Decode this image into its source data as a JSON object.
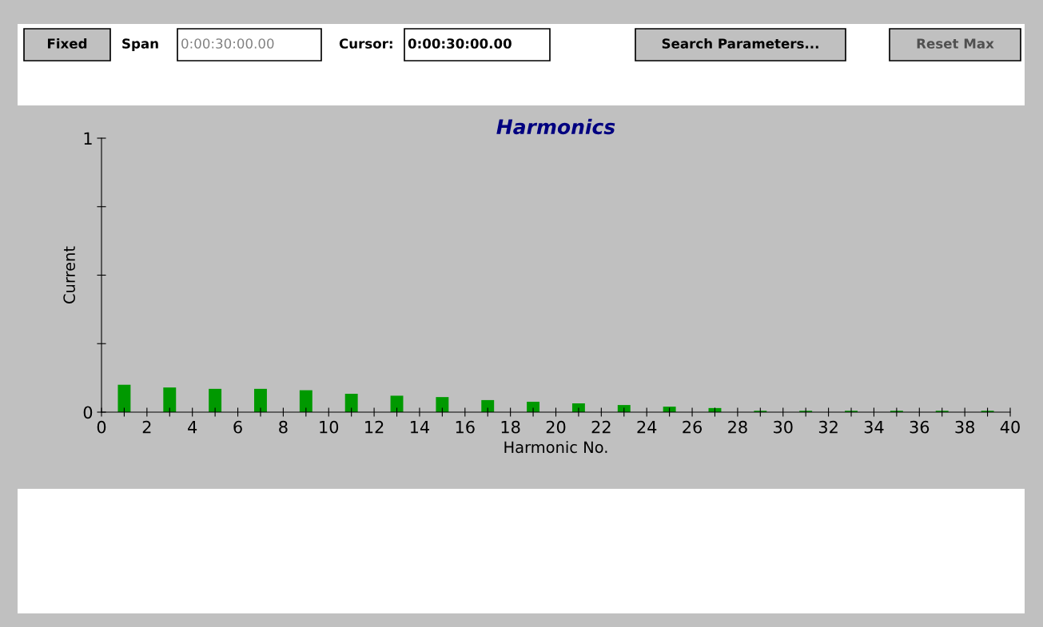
{
  "chart_data": {
    "type": "bar",
    "title": "Harmonics",
    "xlabel": "Harmonic No.",
    "ylabel": "Current",
    "x": [
      1,
      3,
      5,
      7,
      9,
      11,
      13,
      15,
      17,
      19,
      21,
      23,
      25,
      27,
      29,
      31,
      33,
      35,
      37,
      39
    ],
    "values": [
      0.1,
      0.09,
      0.085,
      0.085,
      0.08,
      0.067,
      0.06,
      0.055,
      0.044,
      0.038,
      0.032,
      0.026,
      0.02,
      0.015,
      0.005,
      0.005,
      0.005,
      0.005,
      0.005,
      0.005
    ],
    "color": "#009900",
    "xlim": [
      0,
      40
    ],
    "ylim": [
      0,
      1
    ],
    "xticks": [
      0,
      {
        "value": 1,
        "label": null
      },
      2,
      {
        "value": 3,
        "label": null
      },
      4,
      {
        "value": 5,
        "label": null
      },
      6,
      {
        "value": 7,
        "label": null
      },
      8,
      {
        "value": 9,
        "label": null
      },
      10,
      {
        "value": 11,
        "label": null
      },
      12,
      {
        "value": 13,
        "label": null
      },
      14,
      {
        "value": 15,
        "label": null
      },
      16,
      {
        "value": 17,
        "label": null
      },
      18,
      {
        "value": 19,
        "label": null
      },
      20,
      {
        "value": 21,
        "label": null
      },
      22,
      {
        "value": 23,
        "label": null
      },
      24,
      {
        "value": 25,
        "label": null
      },
      26,
      {
        "value": 27,
        "label": null
      },
      28,
      {
        "value": 29,
        "label": null
      },
      30,
      {
        "value": 31,
        "label": null
      },
      32,
      {
        "value": 33,
        "label": null
      },
      34,
      {
        "value": 35,
        "label": null
      },
      36,
      {
        "value": 37,
        "label": null
      },
      38,
      {
        "value": 39,
        "label": null
      },
      40
    ],
    "yticks": [
      0,
      {
        "value": 0.25,
        "label": null
      },
      {
        "value": 0.5,
        "label": null
      },
      {
        "value": 0.75,
        "label": null
      },
      1
    ],
    "grid": false,
    "legend": false,
    "annotations": [
      "Fixed",
      "Span",
      "0:00:30:00.00",
      "Cursor:",
      "0:00:30:00.00",
      "Search Parameters...",
      "Reset Max"
    ]
  }
}
